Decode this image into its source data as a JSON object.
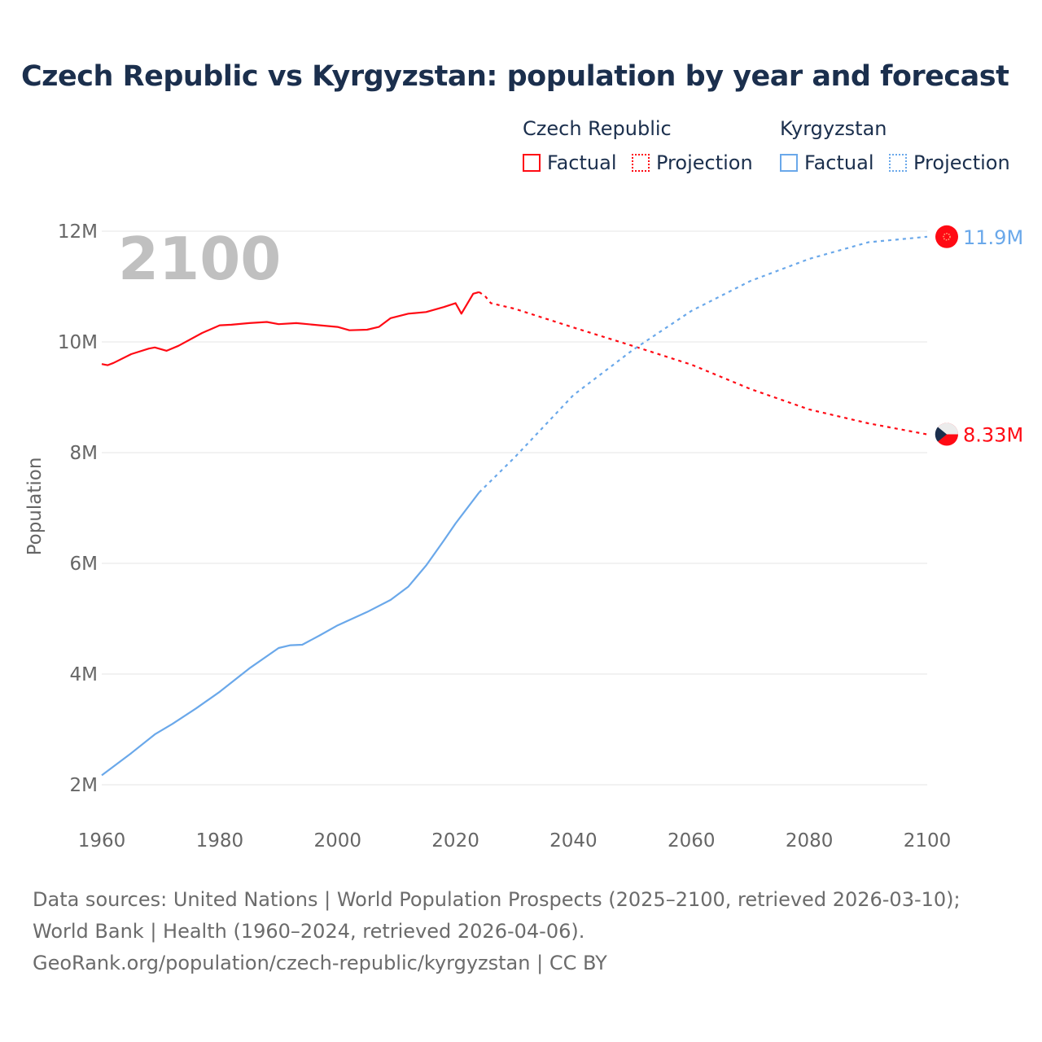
{
  "title": "Czech Republic vs Kyrgyzstan: population by year and forecast",
  "legend": {
    "groups": [
      {
        "name": "Czech Republic",
        "factual": "Factual",
        "projection": "Projection",
        "color": "#ff0a14"
      },
      {
        "name": "Kyrgyzstan",
        "factual": "Factual",
        "projection": "Projection",
        "color": "#6aa8ea"
      }
    ]
  },
  "year_watermark": "2100",
  "footer": {
    "sources": "Data sources: United Nations | World Population Prospects (2025–2100, retrieved 2026-03-10); World Bank | Health (1960–2024, retrieved 2026-04-06).",
    "credit": "GeoRank.org/population/czech-republic/kyrgyzstan | CC BY"
  },
  "chart_data": {
    "type": "line",
    "title": "Czech Republic vs Kyrgyzstan: population by year and forecast",
    "xlabel": "",
    "ylabel": "Population",
    "xlim": [
      1960,
      2100
    ],
    "ylim": [
      2,
      12
    ],
    "x_ticks": [
      "1960",
      "1980",
      "2000",
      "2020",
      "2040",
      "2060",
      "2080",
      "2100"
    ],
    "y_ticks": [
      {
        "v": 2,
        "label": "2M"
      },
      {
        "v": 4,
        "label": "4M"
      },
      {
        "v": 6,
        "label": "6M"
      },
      {
        "v": 8,
        "label": "8M"
      },
      {
        "v": 10,
        "label": "10M"
      },
      {
        "v": 12,
        "label": "12M"
      }
    ],
    "units": "millions",
    "grid": true,
    "series": [
      {
        "name": "Czech Republic",
        "color": "#ff0a14",
        "end_label": "8.33M",
        "factual": [
          [
            1960,
            9.6
          ],
          [
            1961,
            9.58
          ],
          [
            1962,
            9.62
          ],
          [
            1965,
            9.78
          ],
          [
            1968,
            9.88
          ],
          [
            1969,
            9.9
          ],
          [
            1971,
            9.84
          ],
          [
            1973,
            9.93
          ],
          [
            1977,
            10.16
          ],
          [
            1980,
            10.3
          ],
          [
            1982,
            10.31
          ],
          [
            1985,
            10.34
          ],
          [
            1988,
            10.36
          ],
          [
            1990,
            10.32
          ],
          [
            1993,
            10.34
          ],
          [
            1997,
            10.3
          ],
          [
            2000,
            10.27
          ],
          [
            2002,
            10.21
          ],
          [
            2005,
            10.22
          ],
          [
            2007,
            10.27
          ],
          [
            2009,
            10.43
          ],
          [
            2012,
            10.51
          ],
          [
            2015,
            10.54
          ],
          [
            2018,
            10.63
          ],
          [
            2020,
            10.7
          ],
          [
            2021,
            10.51
          ],
          [
            2023,
            10.87
          ],
          [
            2024,
            10.9
          ]
        ],
        "projection": [
          [
            2024,
            10.9
          ],
          [
            2025,
            10.83
          ],
          [
            2026,
            10.7
          ],
          [
            2030,
            10.6
          ],
          [
            2040,
            10.26
          ],
          [
            2050,
            9.93
          ],
          [
            2060,
            9.59
          ],
          [
            2070,
            9.15
          ],
          [
            2080,
            8.78
          ],
          [
            2090,
            8.53
          ],
          [
            2100,
            8.33
          ]
        ]
      },
      {
        "name": "Kyrgyzstan",
        "color": "#6aa8ea",
        "end_label": "11.9M",
        "factual": [
          [
            1960,
            2.17
          ],
          [
            1965,
            2.57
          ],
          [
            1969,
            2.91
          ],
          [
            1972,
            3.1
          ],
          [
            1976,
            3.38
          ],
          [
            1980,
            3.68
          ],
          [
            1985,
            4.1
          ],
          [
            1990,
            4.47
          ],
          [
            1992,
            4.52
          ],
          [
            1994,
            4.53
          ],
          [
            1997,
            4.7
          ],
          [
            2000,
            4.88
          ],
          [
            2005,
            5.12
          ],
          [
            2009,
            5.34
          ],
          [
            2012,
            5.58
          ],
          [
            2015,
            5.96
          ],
          [
            2018,
            6.41
          ],
          [
            2020,
            6.72
          ],
          [
            2024,
            7.28
          ]
        ],
        "projection": [
          [
            2024,
            7.28
          ],
          [
            2030,
            7.91
          ],
          [
            2040,
            9.04
          ],
          [
            2050,
            9.85
          ],
          [
            2060,
            10.56
          ],
          [
            2070,
            11.1
          ],
          [
            2080,
            11.5
          ],
          [
            2090,
            11.8
          ],
          [
            2100,
            11.9
          ]
        ]
      }
    ]
  }
}
